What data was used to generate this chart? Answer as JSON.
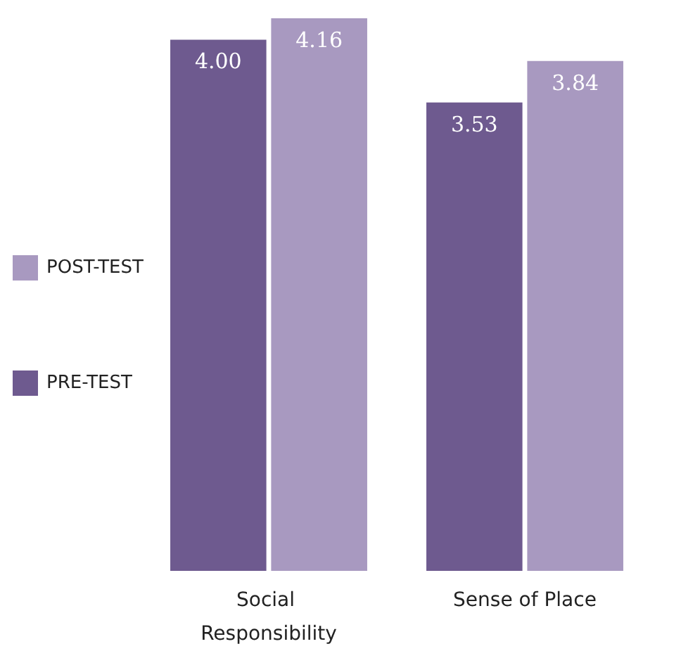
{
  "chart_data": {
    "type": "bar",
    "categories": [
      "Social Responsibility",
      "Sense of Place"
    ],
    "series": [
      {
        "name": "PRE-TEST",
        "color": "#6e5a8f",
        "values": [
          4.0,
          3.53
        ],
        "value_labels": [
          "4.00",
          "3.53"
        ]
      },
      {
        "name": "POST-TEST",
        "color": "#a899c0",
        "values": [
          4.16,
          3.84
        ],
        "value_labels": [
          "4.16",
          "3.84"
        ]
      }
    ],
    "legend": "left"
  }
}
